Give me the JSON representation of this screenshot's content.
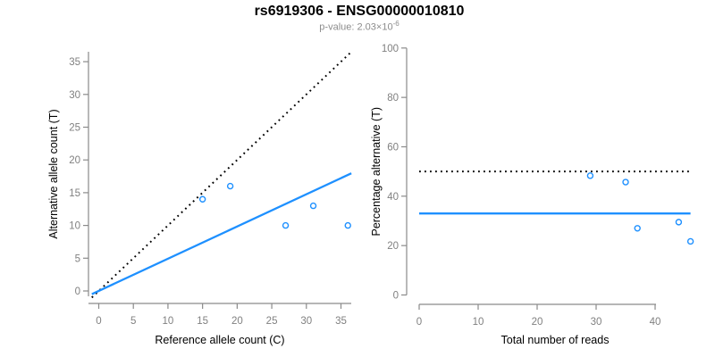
{
  "header": {
    "title": "rs6919306 - ENSG00000010810",
    "pvalue_prefix": "p-value: 2.03×10",
    "pvalue_exponent": "-6"
  },
  "colors": {
    "accent_blue": "#1E90FF",
    "dotted_line": "#000000",
    "axis_line": "#8a8a8a",
    "tick_label": "#808080",
    "axis_label": "#000000",
    "subtitle_gray": "#8c8c8c"
  },
  "chart_data": [
    {
      "id": "allele-counts-panel",
      "type": "scatter",
      "xlabel": "Reference allele count (C)",
      "ylabel": "Alternative allele count (T)",
      "xlim": [
        -1.5,
        36.5
      ],
      "ylim": [
        -1.9,
        36.6
      ],
      "xticks": [
        0,
        5,
        10,
        15,
        20,
        25,
        30,
        35
      ],
      "yticks": [
        0,
        5,
        10,
        15,
        20,
        25,
        30,
        35
      ],
      "grid": false,
      "points": [
        [
          15,
          14
        ],
        [
          19,
          16
        ],
        [
          27,
          10
        ],
        [
          31,
          13
        ],
        [
          36,
          10
        ]
      ],
      "lines": [
        {
          "name": "expected-50pct-identity-line",
          "style": "dotted",
          "color": "#000000",
          "slope": 1,
          "intercept": 0,
          "x": [
            -1,
            36.5
          ],
          "y": [
            -1,
            36.5
          ]
        },
        {
          "name": "fitted-proportion-line",
          "style": "solid",
          "color": "#1E90FF",
          "slope": 0.49,
          "intercept": 0,
          "x": [
            -1,
            36.5
          ],
          "y": [
            -0.49,
            17.96
          ]
        }
      ]
    },
    {
      "id": "percentage-panel",
      "type": "scatter",
      "xlabel": "Total number of reads",
      "ylabel": "Percentage alternative (T)",
      "xlim": [
        -2,
        47
      ],
      "ylim": [
        -4,
        100
      ],
      "xticks": [
        0,
        10,
        20,
        30,
        40
      ],
      "yticks": [
        0,
        20,
        40,
        60,
        80,
        100
      ],
      "grid": false,
      "points": [
        [
          29,
          48.3
        ],
        [
          35,
          45.7
        ],
        [
          37,
          27
        ],
        [
          44,
          29.5
        ],
        [
          46,
          21.7
        ]
      ],
      "lines": [
        {
          "name": "expected-50pct-line",
          "style": "dotted",
          "color": "#000000",
          "slope": 0,
          "intercept": 50,
          "x": [
            0,
            46
          ],
          "y": [
            50,
            50
          ]
        },
        {
          "name": "observed-mean-percentage-line",
          "style": "solid",
          "color": "#1E90FF",
          "slope": 0,
          "intercept": 33,
          "x": [
            0,
            46
          ],
          "y": [
            33,
            33
          ]
        }
      ]
    }
  ]
}
